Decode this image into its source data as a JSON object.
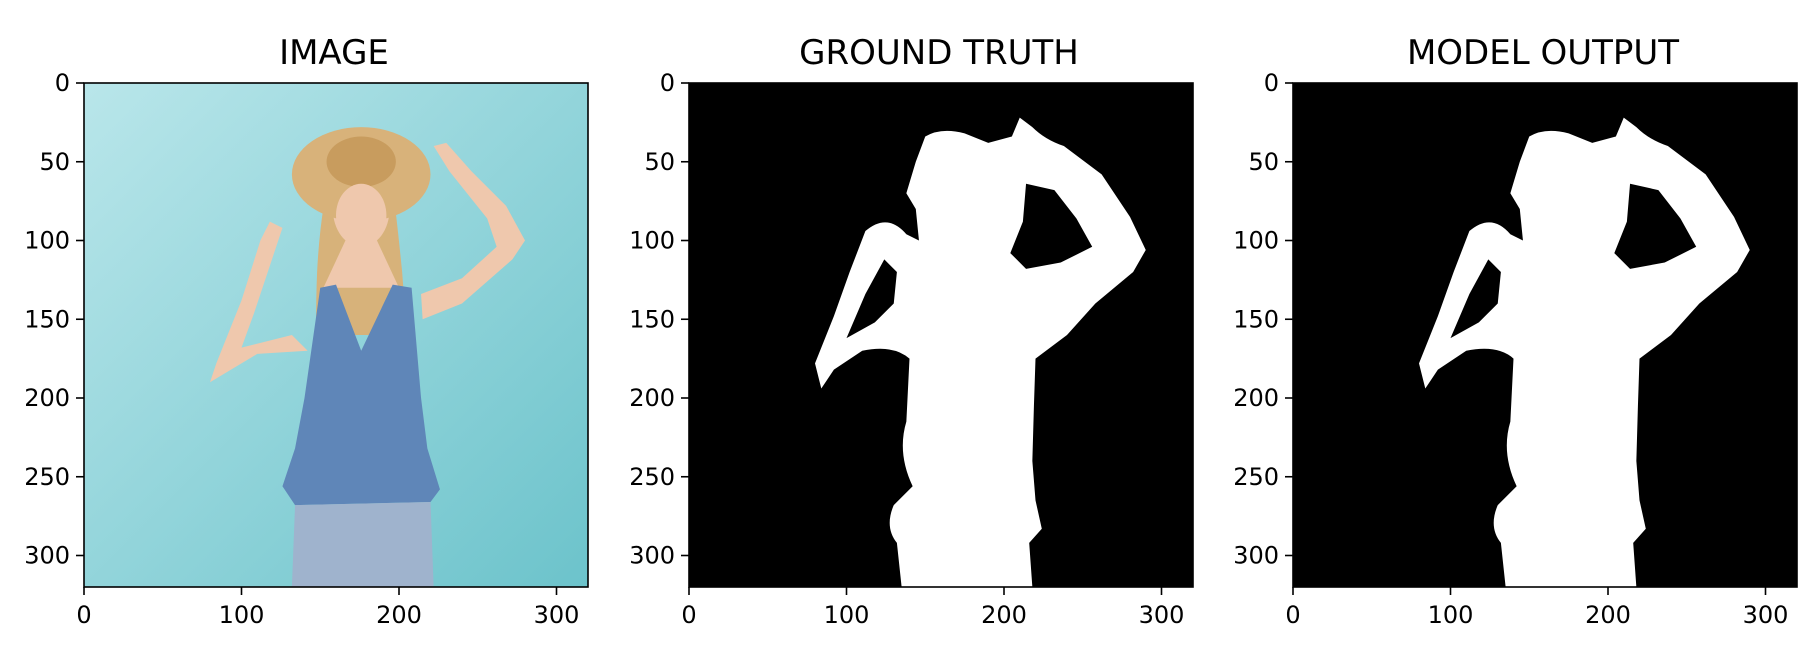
{
  "chart_data": [
    {
      "type": "image",
      "title": "IMAGE",
      "xlim": [
        0,
        320
      ],
      "ylim": [
        320,
        0
      ],
      "x_ticks": [
        0,
        100,
        200,
        300
      ],
      "y_ticks": [
        0,
        50,
        100,
        150,
        200,
        250,
        300
      ],
      "colors": {
        "background": "#8fd3d9",
        "dress": "#5f86b8",
        "hair": "#d7b27a",
        "skin": "#efc8ad",
        "hat": "#d8b27a",
        "jeans": "#9fb3cd"
      }
    },
    {
      "type": "image",
      "title": "GROUND TRUTH",
      "xlim": [
        0,
        320
      ],
      "ylim": [
        320,
        0
      ],
      "x_ticks": [
        0,
        100,
        200,
        300
      ],
      "y_ticks": [
        0,
        50,
        100,
        150,
        200,
        250,
        300
      ],
      "colors": {
        "background": "#000000",
        "mask": "#ffffff"
      }
    },
    {
      "type": "image",
      "title": "MODEL OUTPUT",
      "xlim": [
        0,
        320
      ],
      "ylim": [
        320,
        0
      ],
      "x_ticks": [
        0,
        100,
        200,
        300
      ],
      "y_ticks": [
        0,
        50,
        100,
        150,
        200,
        250,
        300
      ],
      "colors": {
        "background": "#000000",
        "mask": "#ffffff"
      }
    }
  ]
}
